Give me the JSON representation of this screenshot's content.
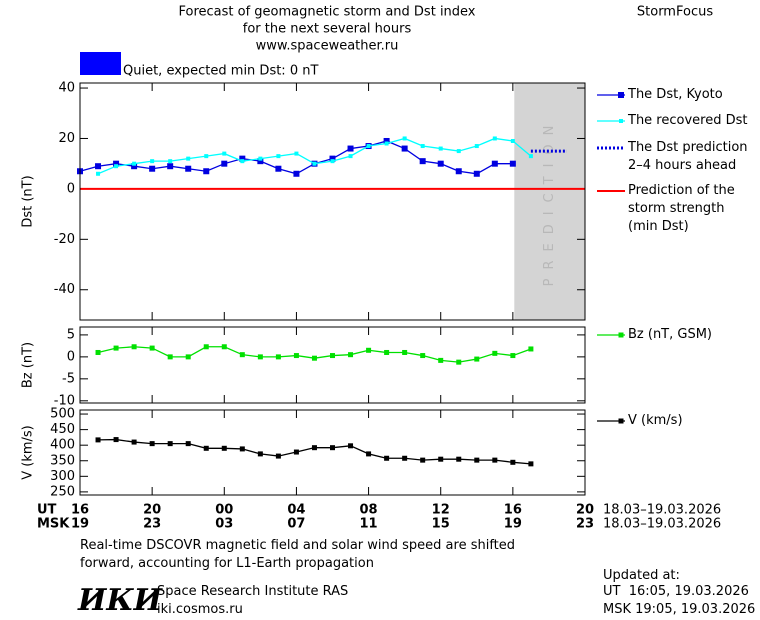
{
  "header": {
    "title_lines": [
      "Forecast of geomagnetic storm and Dst index",
      "for the next several hours",
      "www.spaceweather.ru"
    ],
    "brand": "StormFocus",
    "status": "Quiet, expected min Dst: 0 nT",
    "status_color": "#0000ff"
  },
  "chart_data": [
    {
      "type": "line",
      "ylabel": "Dst (nT)",
      "ylim": [
        -52,
        42
      ],
      "yticks": [
        -40,
        -20,
        0,
        20,
        40
      ],
      "prediction_start": 24.08,
      "prediction_label": "PREDICTION",
      "reference": {
        "name": "Prediction of the\nstorm strength\n(min Dst)",
        "value": 0,
        "color": "#ff0000"
      },
      "series": [
        {
          "name": "The Dst, Kyoto",
          "color": "#0000e0",
          "marker": 6,
          "x": [
            0,
            1,
            2,
            3,
            4,
            5,
            6,
            7,
            8,
            9,
            10,
            11,
            12,
            13,
            14,
            15,
            16,
            17,
            18,
            19,
            20,
            21,
            22,
            23,
            24
          ],
          "values": [
            7,
            9,
            10,
            9,
            8,
            9,
            8,
            7,
            10,
            12,
            11,
            8,
            6,
            10,
            12,
            16,
            17,
            19,
            16,
            11,
            10,
            7,
            6,
            10,
            10
          ]
        },
        {
          "name": "The recovered Dst",
          "color": "#00ffff",
          "marker": 4,
          "x": [
            1,
            2,
            3,
            4,
            5,
            6,
            7,
            8,
            9,
            10,
            11,
            12,
            13,
            14,
            15,
            16,
            17,
            18,
            19,
            20,
            21,
            22,
            23,
            24,
            25
          ],
          "values": [
            6,
            9,
            10,
            11,
            11,
            12,
            13,
            14,
            11,
            12,
            13,
            14,
            10,
            11,
            13,
            17,
            18,
            20,
            17,
            16,
            15,
            17,
            20,
            19,
            13
          ]
        },
        {
          "name": "The Dst prediction\n2–4 hours ahead",
          "color": "#0000e0",
          "style": "dotted",
          "x": [
            25,
            27
          ],
          "values": [
            15,
            15
          ]
        }
      ]
    },
    {
      "type": "line",
      "ylabel": "Bz (nT)",
      "ylim": [
        -10.5,
        6.8
      ],
      "yticks": [
        -10,
        -5,
        0,
        5
      ],
      "series": [
        {
          "name": "Bz (nT, GSM)",
          "color": "#00e000",
          "marker": 5,
          "x": [
            1,
            2,
            3,
            4,
            5,
            6,
            7,
            8,
            9,
            10,
            11,
            12,
            13,
            14,
            15,
            16,
            17,
            18,
            19,
            20,
            21,
            22,
            23,
            24,
            25
          ],
          "values": [
            1,
            2,
            2.3,
            2,
            0,
            0,
            2.3,
            2.3,
            0.5,
            0,
            0,
            0.3,
            -0.3,
            0.3,
            0.5,
            1.5,
            1,
            1,
            0.3,
            -0.8,
            -1.2,
            -0.5,
            0.8,
            0.3,
            1.8
          ]
        }
      ]
    },
    {
      "type": "line",
      "ylabel": "V (km/s)",
      "ylim": [
        240,
        513
      ],
      "yticks": [
        250,
        300,
        350,
        400,
        450,
        500
      ],
      "xlim": [
        0,
        28
      ],
      "xlabel": "UT",
      "xrange_label": "18.03–19.03.2026",
      "x2label": "MSK",
      "x2range_label": "18.03–19.03.2026",
      "xticks": [
        {
          "value": 0,
          "label": "16"
        },
        {
          "value": 4,
          "label": "20"
        },
        {
          "value": 8,
          "label": "00"
        },
        {
          "value": 12,
          "label": "04"
        },
        {
          "value": 16,
          "label": "08"
        },
        {
          "value": 20,
          "label": "12"
        },
        {
          "value": 24,
          "label": "16"
        },
        {
          "value": 28,
          "label": "20"
        }
      ],
      "x2ticks": [
        {
          "value": 0,
          "label": "19"
        },
        {
          "value": 4,
          "label": "23"
        },
        {
          "value": 8,
          "label": "03"
        },
        {
          "value": 12,
          "label": "07"
        },
        {
          "value": 16,
          "label": "11"
        },
        {
          "value": 20,
          "label": "15"
        },
        {
          "value": 24,
          "label": "19"
        },
        {
          "value": 28,
          "label": "23"
        }
      ],
      "series": [
        {
          "name": "V (km/s)",
          "color": "#000000",
          "marker": 5,
          "x": [
            1,
            2,
            3,
            4,
            5,
            6,
            7,
            8,
            9,
            10,
            11,
            12,
            13,
            14,
            15,
            16,
            17,
            18,
            19,
            20,
            21,
            22,
            23,
            24,
            25
          ],
          "values": [
            417,
            418,
            410,
            405,
            405,
            405,
            390,
            390,
            388,
            372,
            365,
            378,
            392,
            392,
            398,
            372,
            358,
            358,
            352,
            355,
            355,
            352,
            352,
            345,
            340
          ]
        }
      ]
    }
  ],
  "footer": {
    "note": "Real-time DSCOVR magnetic field and solar wind speed are shifted\nforward, accounting for L1-Earth propagation",
    "logo": "ИКИ",
    "institute": "Space Research Institute RAS",
    "site": "iki.cosmos.ru",
    "updated_label": "Updated at:",
    "updated_ut": "UT  16:05, 19.03.2026",
    "updated_msk": "MSK 19:05, 19.03.2026"
  }
}
